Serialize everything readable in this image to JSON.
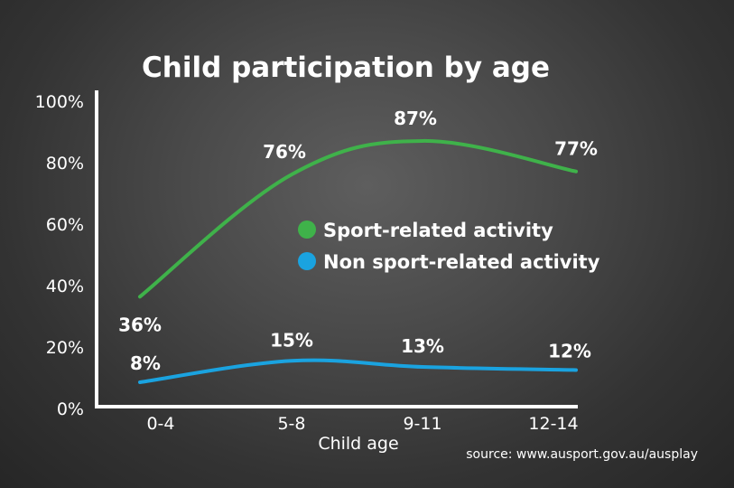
{
  "chart_data": {
    "type": "line",
    "title": "Child participation by age",
    "categories": [
      "0-4",
      "5-8",
      "9-11",
      "12-14"
    ],
    "xlabel": "Child age",
    "ylabel": "",
    "ylim": [
      0,
      100
    ],
    "yticks": [
      "0%",
      "20%",
      "40%",
      "60%",
      "80%",
      "100%"
    ],
    "grid": false,
    "legend_position": "center-right",
    "series": [
      {
        "name": "Sport-related activity",
        "color": "#3fb24a",
        "values": [
          36,
          76,
          87,
          77
        ],
        "labels": [
          "36%",
          "76%",
          "87%",
          "77%"
        ],
        "curve_x": [
          "0-4",
          "5-8",
          "9-11",
          "12-14"
        ]
      },
      {
        "name": "Non sport-related activity",
        "color": "#1aa3e0",
        "values": [
          8,
          15,
          13,
          12
        ],
        "labels": [
          "8%",
          "15%",
          "13%",
          "12%"
        ]
      }
    ],
    "source": "source: www.ausport.gov.au/ausplay"
  }
}
